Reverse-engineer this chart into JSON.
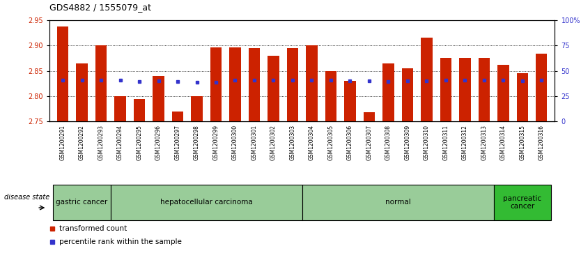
{
  "title": "GDS4882 / 1555079_at",
  "samples": [
    "GSM1200291",
    "GSM1200292",
    "GSM1200293",
    "GSM1200294",
    "GSM1200295",
    "GSM1200296",
    "GSM1200297",
    "GSM1200298",
    "GSM1200299",
    "GSM1200300",
    "GSM1200301",
    "GSM1200302",
    "GSM1200303",
    "GSM1200304",
    "GSM1200305",
    "GSM1200306",
    "GSM1200307",
    "GSM1200308",
    "GSM1200309",
    "GSM1200310",
    "GSM1200311",
    "GSM1200312",
    "GSM1200313",
    "GSM1200314",
    "GSM1200315",
    "GSM1200316"
  ],
  "bar_values": [
    2.937,
    2.865,
    2.9,
    2.8,
    2.795,
    2.84,
    2.77,
    2.8,
    2.897,
    2.897,
    2.895,
    2.88,
    2.895,
    2.9,
    2.85,
    2.83,
    2.768,
    2.865,
    2.855,
    2.915,
    2.875,
    2.875,
    2.875,
    2.862,
    2.845,
    2.884
  ],
  "percentile_values": [
    2.832,
    2.831,
    2.832,
    2.832,
    2.829,
    2.83,
    2.829,
    2.828,
    2.828,
    2.831,
    2.831,
    2.832,
    2.831,
    2.831,
    2.831,
    2.83,
    2.83,
    2.829,
    2.83,
    2.83,
    2.831,
    2.831,
    2.831,
    2.831,
    2.83,
    2.831
  ],
  "ylim_left": [
    2.75,
    2.95
  ],
  "yticks_left": [
    2.75,
    2.8,
    2.85,
    2.9,
    2.95
  ],
  "yticks_right": [
    0,
    25,
    50,
    75,
    100
  ],
  "bar_color": "#cc2200",
  "dot_color": "#3333cc",
  "bg_color": "#ffffff",
  "xtick_bg_color": "#cccccc",
  "disease_groups": [
    {
      "label": "gastric cancer",
      "start": 0,
      "end": 3,
      "color": "#99cc99"
    },
    {
      "label": "hepatocellular carcinoma",
      "start": 3,
      "end": 13,
      "color": "#99cc99"
    },
    {
      "label": "normal",
      "start": 13,
      "end": 23,
      "color": "#99cc99"
    },
    {
      "label": "pancreatic\ncancer",
      "start": 23,
      "end": 26,
      "color": "#33bb33"
    }
  ],
  "disease_state_label": "disease state",
  "legend_items": [
    {
      "color": "#cc2200",
      "label": "transformed count"
    },
    {
      "color": "#3333cc",
      "label": "percentile rank within the sample"
    }
  ]
}
